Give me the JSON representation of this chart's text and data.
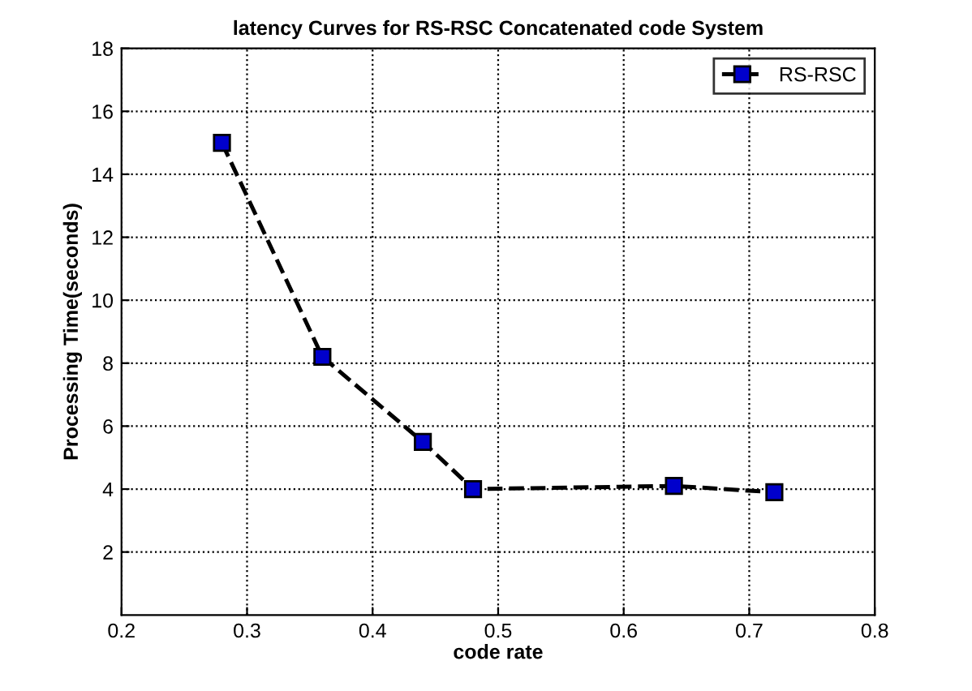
{
  "chart_data": {
    "type": "line",
    "title": "latency Curves for RS-RSC Concatenated code System",
    "xlabel": "code rate",
    "ylabel": "Processing Time(seconds)",
    "x": [
      0.28,
      0.36,
      0.44,
      0.48,
      0.64,
      0.72
    ],
    "series": [
      {
        "name": "RS-RSC",
        "color": "#0000cc",
        "values": [
          15.0,
          8.2,
          5.5,
          4.0,
          4.1,
          3.9
        ]
      }
    ],
    "xlim": [
      0.2,
      0.8
    ],
    "xticks": [
      0.2,
      0.3,
      0.4,
      0.5,
      0.6,
      0.7,
      0.8
    ],
    "ylim": [
      0,
      18
    ],
    "yticks": [
      2,
      4,
      6,
      8,
      10,
      12,
      14,
      16,
      18
    ],
    "grid": true,
    "legend": "top right",
    "marker": "square",
    "line_style": "dashed"
  }
}
